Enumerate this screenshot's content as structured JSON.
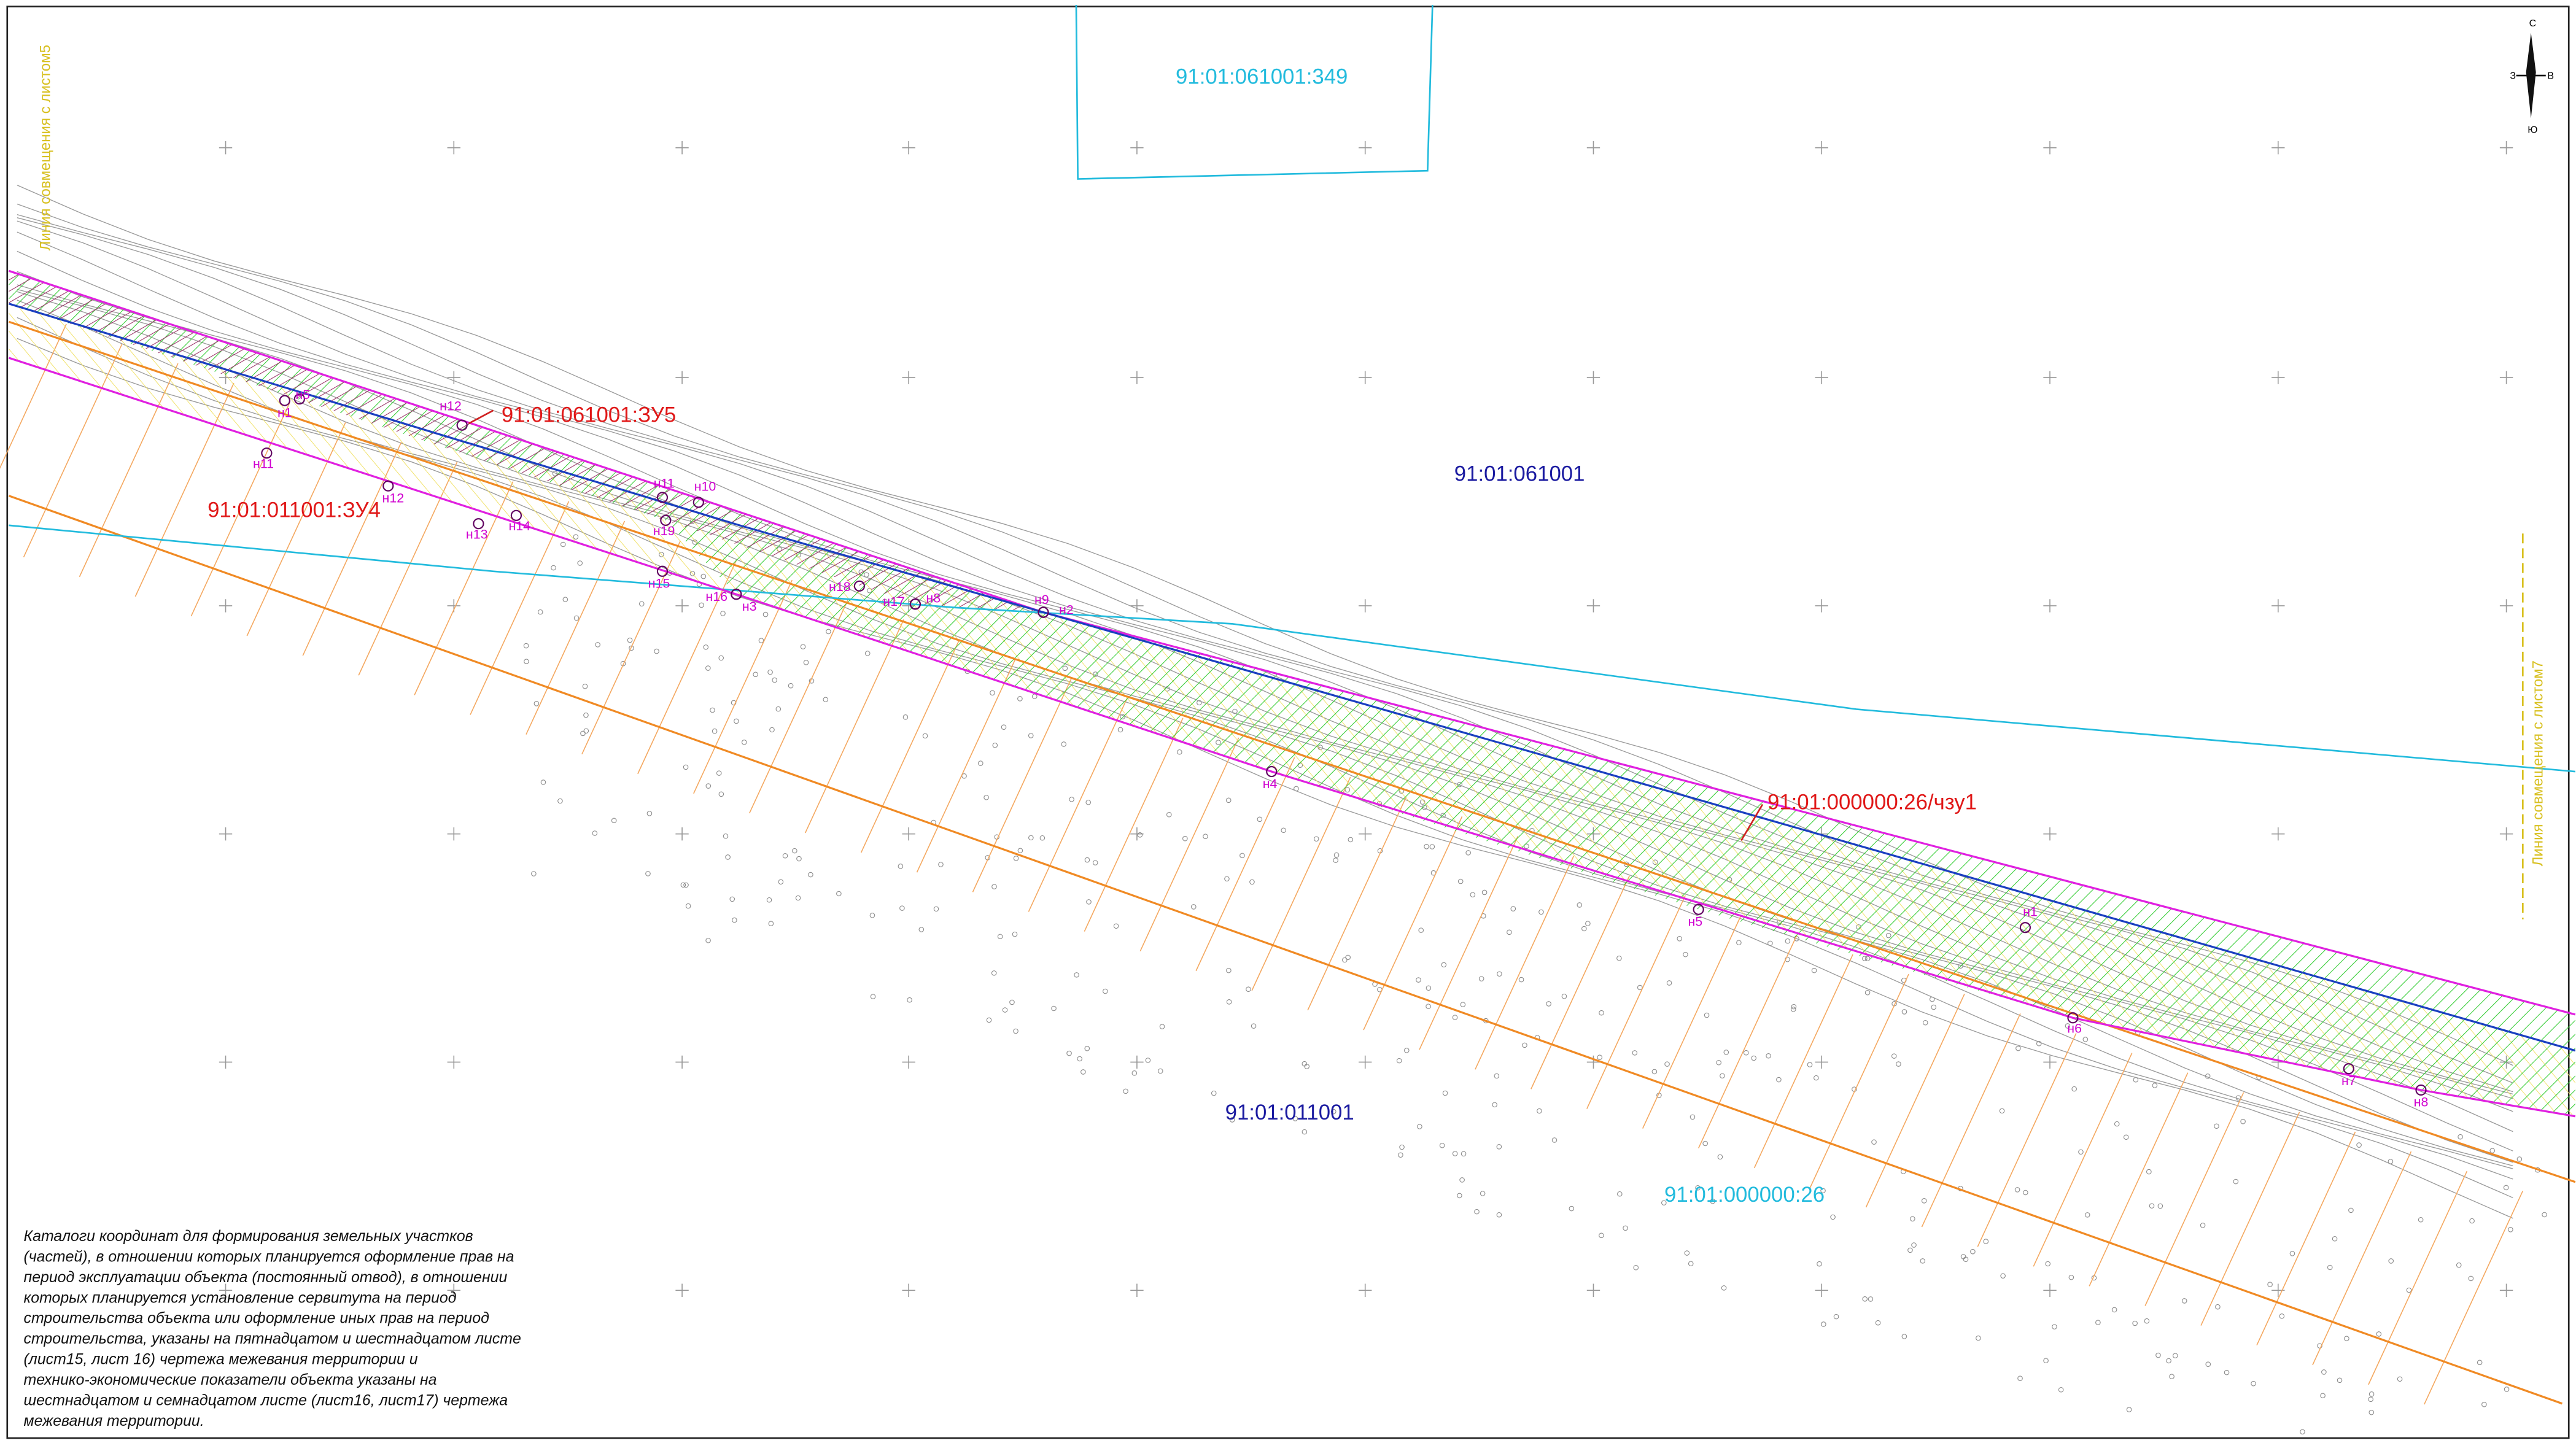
{
  "labels": {
    "parcel_349": "91:01:061001:349",
    "zu5": "91:01:061001:ЗУ5",
    "zu4": "91:01:011001:ЗУ4",
    "quarter_061001": "91:01:061001",
    "chzu1": "91:01:000000:26/чзу1",
    "quarter_011001": "91:01:011001",
    "parcel_26": "91:01:000000:26"
  },
  "match_lines": [
    "Линия совмещения с листом5",
    "Линия совмещения с листом7"
  ],
  "compass": {
    "north": "С",
    "west": "З",
    "east": "В",
    "south": "Ю"
  },
  "points": [
    "н1",
    "н5",
    "н12",
    "н11",
    "н12",
    "н13",
    "н14",
    "н11",
    "н10",
    "н19",
    "н15",
    "н16",
    "н3",
    "н18",
    "н17",
    "н8",
    "н9",
    "н2",
    "н4",
    "н5",
    "н1",
    "н6",
    "н7",
    "н8"
  ],
  "notes": [
    "Каталоги координат для формирования земельных участков",
    "(частей), в отношении которых планируется оформление прав на",
    "период эксплуатации объекта (постоянный отвод), в отношении",
    "которых планируется установление сервитута на период",
    "строительства объекта или оформление иных прав на период",
    "строительства, указаны на пятнадцатом и шестнадцатом листе",
    "(лист15, лист 16) чертежа межевания территории и",
    "технико-экономические показатели объекта указаны на",
    "шестнадцатом и семнадцатом листе (лист16, лист17) чертежа",
    "межевания территории."
  ]
}
